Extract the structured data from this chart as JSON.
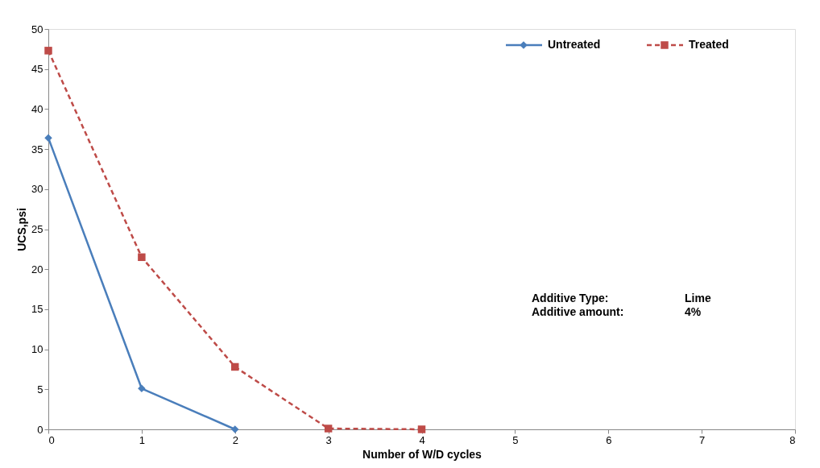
{
  "chart_data": {
    "type": "line",
    "xlabel": "Number of W/D cycles",
    "ylabel": "UCS,psi",
    "x": [
      0,
      1,
      2,
      3,
      4
    ],
    "series": [
      {
        "name": "Untreated",
        "color": "#4a7ebb",
        "marker": "diamond",
        "line_style": "solid",
        "values": [
          36.4,
          5.1,
          0,
          null,
          null
        ]
      },
      {
        "name": "Treated",
        "color": "#be4b48",
        "marker": "square",
        "line_style": "dashed",
        "values": [
          47.3,
          21.5,
          7.8,
          0.1,
          0
        ]
      }
    ],
    "xlim": [
      0,
      8
    ],
    "xticks": [
      0,
      1,
      2,
      3,
      4,
      5,
      6,
      7,
      8
    ],
    "ylim": [
      0,
      50
    ],
    "yticks": [
      0,
      5,
      10,
      15,
      20,
      25,
      30,
      35,
      40,
      45,
      50
    ],
    "grid": false,
    "legend": "top right",
    "annotations": [
      "Additive Type:",
      "Lime",
      "Additive amount:",
      "4%"
    ]
  }
}
